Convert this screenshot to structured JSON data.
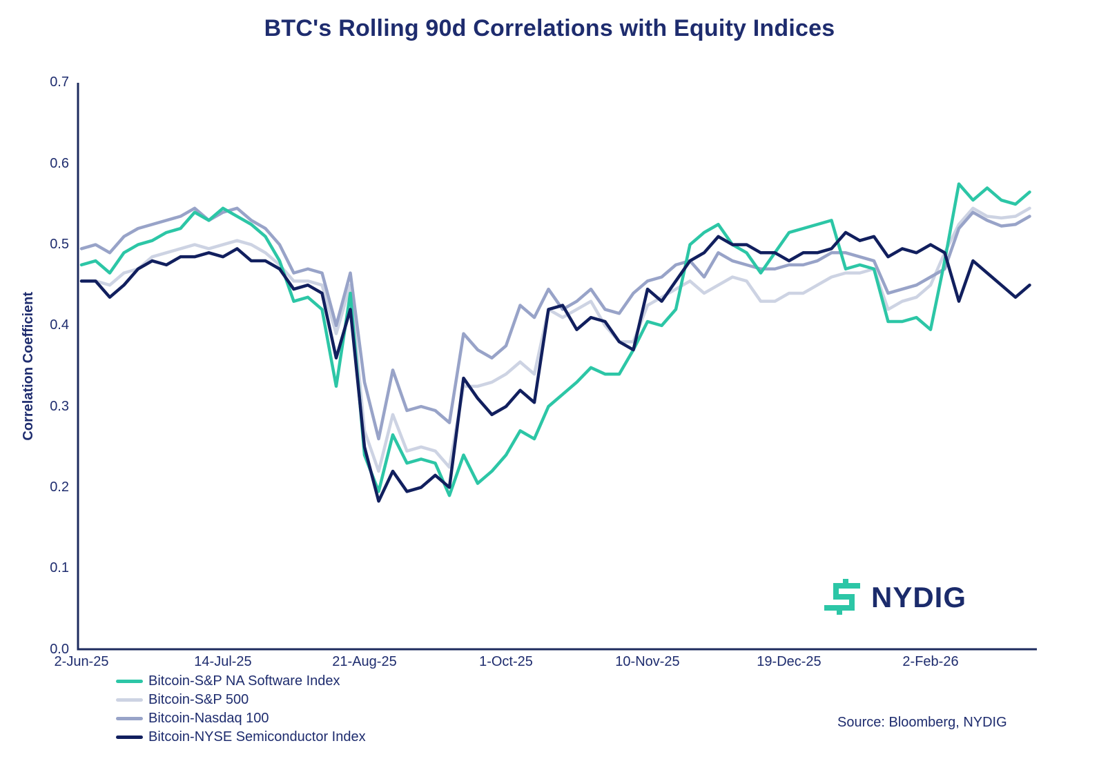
{
  "title": "BTC's Rolling 90d Correlations with Equity Indices",
  "source": "Source: Bloomberg, NYDIG",
  "logo": {
    "text": "NYDIG"
  },
  "colors": {
    "text": "#1e2c6e",
    "axis": "#1d2b5e",
    "background": "#ffffff",
    "logo_glyph": "#2cc6a6",
    "logo_text": "#1b2b6b"
  },
  "chart_data": {
    "type": "line",
    "title": "BTC's Rolling 90d Correlations with Equity Indices",
    "xlabel": "",
    "ylabel": "Correlation Coefficient",
    "ylim": [
      0.0,
      0.7
    ],
    "grid": false,
    "legend_position": "bottom-left",
    "ytick_labels": [
      "0.7",
      "0.6",
      "0.5",
      "0.4",
      "0.3",
      "0.2",
      "0.1",
      "0.0"
    ],
    "xtick_labels": [
      "2-Jun-25",
      "14-Jul-25",
      "21-Aug-25",
      "1-Oct-25",
      "10-Nov-25",
      "19-Dec-25",
      "2-Feb-26"
    ],
    "xtick_indices": [
      0,
      10,
      20,
      30,
      40,
      50,
      60
    ],
    "n_points": 68,
    "series": [
      {
        "name": "Bitcoin-S&P NA Software Index",
        "color": "#2cc6a6",
        "values": [
          0.475,
          0.48,
          0.465,
          0.49,
          0.5,
          0.505,
          0.515,
          0.52,
          0.54,
          0.53,
          0.545,
          0.535,
          0.525,
          0.51,
          0.48,
          0.43,
          0.435,
          0.42,
          0.325,
          0.44,
          0.24,
          0.195,
          0.265,
          0.23,
          0.235,
          0.23,
          0.19,
          0.24,
          0.205,
          0.22,
          0.24,
          0.27,
          0.26,
          0.3,
          0.315,
          0.33,
          0.348,
          0.34,
          0.34,
          0.37,
          0.405,
          0.4,
          0.42,
          0.5,
          0.515,
          0.525,
          0.5,
          0.49,
          0.465,
          0.49,
          0.515,
          0.52,
          0.525,
          0.53,
          0.47,
          0.475,
          0.47,
          0.405,
          0.405,
          0.41,
          0.395,
          0.48,
          0.575,
          0.555,
          0.57,
          0.555,
          0.55,
          0.565
        ]
      },
      {
        "name": "Bitcoin-S&P 500",
        "color": "#cdd3e3",
        "values": [
          0.455,
          0.455,
          0.45,
          0.465,
          0.47,
          0.485,
          0.49,
          0.495,
          0.5,
          0.495,
          0.5,
          0.505,
          0.5,
          0.49,
          0.475,
          0.455,
          0.455,
          0.45,
          0.39,
          0.45,
          0.27,
          0.22,
          0.29,
          0.245,
          0.25,
          0.245,
          0.225,
          0.325,
          0.325,
          0.33,
          0.34,
          0.355,
          0.34,
          0.42,
          0.41,
          0.42,
          0.43,
          0.4,
          0.38,
          0.38,
          0.425,
          0.435,
          0.445,
          0.455,
          0.44,
          0.45,
          0.46,
          0.455,
          0.43,
          0.43,
          0.44,
          0.44,
          0.45,
          0.46,
          0.465,
          0.465,
          0.47,
          0.42,
          0.43,
          0.435,
          0.45,
          0.49,
          0.525,
          0.545,
          0.535,
          0.533,
          0.535,
          0.545
        ]
      },
      {
        "name": "Bitcoin-Nasdaq 100",
        "color": "#98a3c8",
        "values": [
          0.495,
          0.5,
          0.49,
          0.51,
          0.52,
          0.525,
          0.53,
          0.535,
          0.545,
          0.53,
          0.54,
          0.545,
          0.53,
          0.52,
          0.5,
          0.465,
          0.47,
          0.465,
          0.4,
          0.465,
          0.33,
          0.26,
          0.345,
          0.295,
          0.3,
          0.295,
          0.28,
          0.39,
          0.37,
          0.36,
          0.375,
          0.425,
          0.41,
          0.445,
          0.42,
          0.43,
          0.445,
          0.42,
          0.415,
          0.44,
          0.455,
          0.46,
          0.475,
          0.48,
          0.46,
          0.49,
          0.48,
          0.475,
          0.47,
          0.47,
          0.475,
          0.475,
          0.48,
          0.49,
          0.49,
          0.485,
          0.48,
          0.44,
          0.445,
          0.45,
          0.46,
          0.47,
          0.52,
          0.54,
          0.53,
          0.523,
          0.525,
          0.535
        ]
      },
      {
        "name": "Bitcoin-NYSE Semiconductor Index",
        "color": "#111f5e",
        "values": [
          0.455,
          0.455,
          0.435,
          0.45,
          0.47,
          0.48,
          0.475,
          0.485,
          0.485,
          0.49,
          0.485,
          0.495,
          0.48,
          0.48,
          0.47,
          0.445,
          0.45,
          0.44,
          0.36,
          0.42,
          0.25,
          0.183,
          0.22,
          0.195,
          0.2,
          0.215,
          0.2,
          0.335,
          0.31,
          0.29,
          0.3,
          0.32,
          0.305,
          0.42,
          0.425,
          0.395,
          0.41,
          0.405,
          0.38,
          0.37,
          0.445,
          0.43,
          0.455,
          0.48,
          0.49,
          0.51,
          0.5,
          0.5,
          0.49,
          0.49,
          0.48,
          0.49,
          0.49,
          0.495,
          0.515,
          0.505,
          0.51,
          0.485,
          0.495,
          0.49,
          0.5,
          0.49,
          0.43,
          0.48,
          0.465,
          0.45,
          0.435,
          0.45
        ]
      }
    ]
  }
}
